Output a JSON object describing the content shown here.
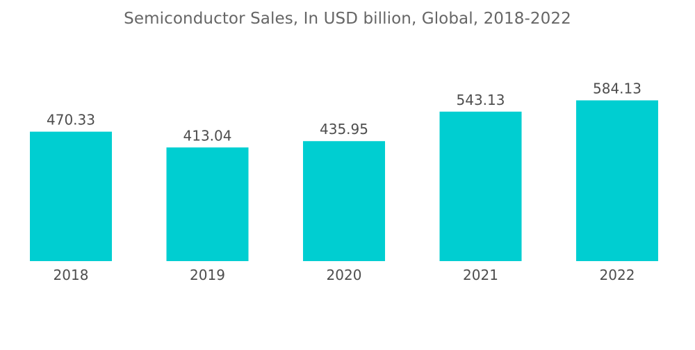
{
  "chart_data": {
    "type": "bar",
    "title": "Semiconductor Sales, In USD billion, Global, 2018-2022",
    "categories": [
      "2018",
      "2019",
      "2020",
      "2021",
      "2022"
    ],
    "values": [
      470.33,
      413.04,
      435.95,
      543.13,
      584.13
    ],
    "value_labels": [
      "470.33",
      "413.04",
      "435.95",
      "543.13",
      "584.13"
    ],
    "xlabel": "",
    "ylabel": "",
    "ylim": [
      0,
      600
    ],
    "grid": false,
    "legend": "none",
    "colors": {
      "bar": "#00CED1",
      "text": "#4d4d4d",
      "title": "#666666"
    }
  }
}
